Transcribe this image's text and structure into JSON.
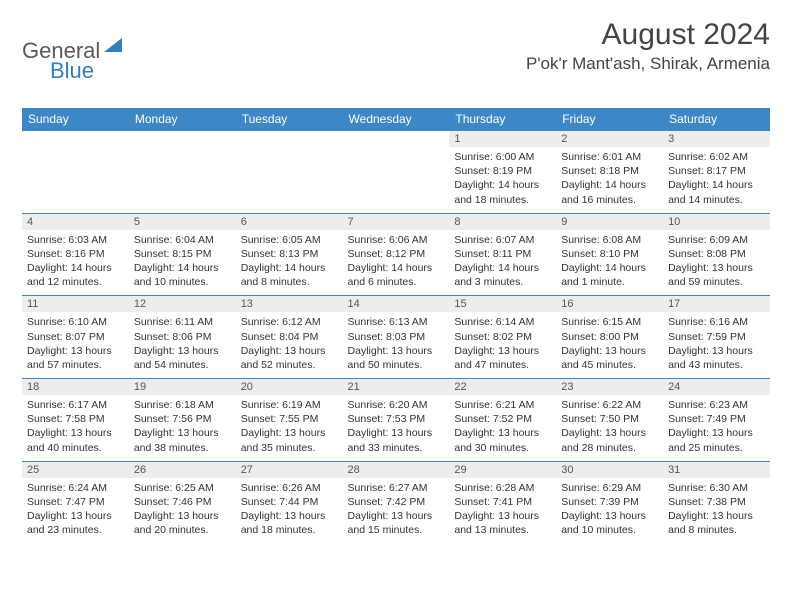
{
  "brand": {
    "text_general": "General",
    "text_blue": "Blue",
    "triangle_color": "#2f7ec0"
  },
  "title": "August 2024",
  "location": "P'ok'r Mant'ash, Shirak, Armenia",
  "colors": {
    "header_bg": "#3d87c7",
    "header_text": "#ffffff",
    "daynum_bg": "#ededed",
    "cell_border": "#3d87c7",
    "body_text": "#333333"
  },
  "weekdays": [
    "Sunday",
    "Monday",
    "Tuesday",
    "Wednesday",
    "Thursday",
    "Friday",
    "Saturday"
  ],
  "weeks": [
    [
      {
        "blank": true
      },
      {
        "blank": true
      },
      {
        "blank": true
      },
      {
        "blank": true
      },
      {
        "day": "1",
        "sunrise": "Sunrise: 6:00 AM",
        "sunset": "Sunset: 8:19 PM",
        "daylight1": "Daylight: 14 hours",
        "daylight2": "and 18 minutes."
      },
      {
        "day": "2",
        "sunrise": "Sunrise: 6:01 AM",
        "sunset": "Sunset: 8:18 PM",
        "daylight1": "Daylight: 14 hours",
        "daylight2": "and 16 minutes."
      },
      {
        "day": "3",
        "sunrise": "Sunrise: 6:02 AM",
        "sunset": "Sunset: 8:17 PM",
        "daylight1": "Daylight: 14 hours",
        "daylight2": "and 14 minutes."
      }
    ],
    [
      {
        "day": "4",
        "sunrise": "Sunrise: 6:03 AM",
        "sunset": "Sunset: 8:16 PM",
        "daylight1": "Daylight: 14 hours",
        "daylight2": "and 12 minutes."
      },
      {
        "day": "5",
        "sunrise": "Sunrise: 6:04 AM",
        "sunset": "Sunset: 8:15 PM",
        "daylight1": "Daylight: 14 hours",
        "daylight2": "and 10 minutes."
      },
      {
        "day": "6",
        "sunrise": "Sunrise: 6:05 AM",
        "sunset": "Sunset: 8:13 PM",
        "daylight1": "Daylight: 14 hours",
        "daylight2": "and 8 minutes."
      },
      {
        "day": "7",
        "sunrise": "Sunrise: 6:06 AM",
        "sunset": "Sunset: 8:12 PM",
        "daylight1": "Daylight: 14 hours",
        "daylight2": "and 6 minutes."
      },
      {
        "day": "8",
        "sunrise": "Sunrise: 6:07 AM",
        "sunset": "Sunset: 8:11 PM",
        "daylight1": "Daylight: 14 hours",
        "daylight2": "and 3 minutes."
      },
      {
        "day": "9",
        "sunrise": "Sunrise: 6:08 AM",
        "sunset": "Sunset: 8:10 PM",
        "daylight1": "Daylight: 14 hours",
        "daylight2": "and 1 minute."
      },
      {
        "day": "10",
        "sunrise": "Sunrise: 6:09 AM",
        "sunset": "Sunset: 8:08 PM",
        "daylight1": "Daylight: 13 hours",
        "daylight2": "and 59 minutes."
      }
    ],
    [
      {
        "day": "11",
        "sunrise": "Sunrise: 6:10 AM",
        "sunset": "Sunset: 8:07 PM",
        "daylight1": "Daylight: 13 hours",
        "daylight2": "and 57 minutes."
      },
      {
        "day": "12",
        "sunrise": "Sunrise: 6:11 AM",
        "sunset": "Sunset: 8:06 PM",
        "daylight1": "Daylight: 13 hours",
        "daylight2": "and 54 minutes."
      },
      {
        "day": "13",
        "sunrise": "Sunrise: 6:12 AM",
        "sunset": "Sunset: 8:04 PM",
        "daylight1": "Daylight: 13 hours",
        "daylight2": "and 52 minutes."
      },
      {
        "day": "14",
        "sunrise": "Sunrise: 6:13 AM",
        "sunset": "Sunset: 8:03 PM",
        "daylight1": "Daylight: 13 hours",
        "daylight2": "and 50 minutes."
      },
      {
        "day": "15",
        "sunrise": "Sunrise: 6:14 AM",
        "sunset": "Sunset: 8:02 PM",
        "daylight1": "Daylight: 13 hours",
        "daylight2": "and 47 minutes."
      },
      {
        "day": "16",
        "sunrise": "Sunrise: 6:15 AM",
        "sunset": "Sunset: 8:00 PM",
        "daylight1": "Daylight: 13 hours",
        "daylight2": "and 45 minutes."
      },
      {
        "day": "17",
        "sunrise": "Sunrise: 6:16 AM",
        "sunset": "Sunset: 7:59 PM",
        "daylight1": "Daylight: 13 hours",
        "daylight2": "and 43 minutes."
      }
    ],
    [
      {
        "day": "18",
        "sunrise": "Sunrise: 6:17 AM",
        "sunset": "Sunset: 7:58 PM",
        "daylight1": "Daylight: 13 hours",
        "daylight2": "and 40 minutes."
      },
      {
        "day": "19",
        "sunrise": "Sunrise: 6:18 AM",
        "sunset": "Sunset: 7:56 PM",
        "daylight1": "Daylight: 13 hours",
        "daylight2": "and 38 minutes."
      },
      {
        "day": "20",
        "sunrise": "Sunrise: 6:19 AM",
        "sunset": "Sunset: 7:55 PM",
        "daylight1": "Daylight: 13 hours",
        "daylight2": "and 35 minutes."
      },
      {
        "day": "21",
        "sunrise": "Sunrise: 6:20 AM",
        "sunset": "Sunset: 7:53 PM",
        "daylight1": "Daylight: 13 hours",
        "daylight2": "and 33 minutes."
      },
      {
        "day": "22",
        "sunrise": "Sunrise: 6:21 AM",
        "sunset": "Sunset: 7:52 PM",
        "daylight1": "Daylight: 13 hours",
        "daylight2": "and 30 minutes."
      },
      {
        "day": "23",
        "sunrise": "Sunrise: 6:22 AM",
        "sunset": "Sunset: 7:50 PM",
        "daylight1": "Daylight: 13 hours",
        "daylight2": "and 28 minutes."
      },
      {
        "day": "24",
        "sunrise": "Sunrise: 6:23 AM",
        "sunset": "Sunset: 7:49 PM",
        "daylight1": "Daylight: 13 hours",
        "daylight2": "and 25 minutes."
      }
    ],
    [
      {
        "day": "25",
        "sunrise": "Sunrise: 6:24 AM",
        "sunset": "Sunset: 7:47 PM",
        "daylight1": "Daylight: 13 hours",
        "daylight2": "and 23 minutes."
      },
      {
        "day": "26",
        "sunrise": "Sunrise: 6:25 AM",
        "sunset": "Sunset: 7:46 PM",
        "daylight1": "Daylight: 13 hours",
        "daylight2": "and 20 minutes."
      },
      {
        "day": "27",
        "sunrise": "Sunrise: 6:26 AM",
        "sunset": "Sunset: 7:44 PM",
        "daylight1": "Daylight: 13 hours",
        "daylight2": "and 18 minutes."
      },
      {
        "day": "28",
        "sunrise": "Sunrise: 6:27 AM",
        "sunset": "Sunset: 7:42 PM",
        "daylight1": "Daylight: 13 hours",
        "daylight2": "and 15 minutes."
      },
      {
        "day": "29",
        "sunrise": "Sunrise: 6:28 AM",
        "sunset": "Sunset: 7:41 PM",
        "daylight1": "Daylight: 13 hours",
        "daylight2": "and 13 minutes."
      },
      {
        "day": "30",
        "sunrise": "Sunrise: 6:29 AM",
        "sunset": "Sunset: 7:39 PM",
        "daylight1": "Daylight: 13 hours",
        "daylight2": "and 10 minutes."
      },
      {
        "day": "31",
        "sunrise": "Sunrise: 6:30 AM",
        "sunset": "Sunset: 7:38 PM",
        "daylight1": "Daylight: 13 hours",
        "daylight2": "and 8 minutes."
      }
    ]
  ]
}
